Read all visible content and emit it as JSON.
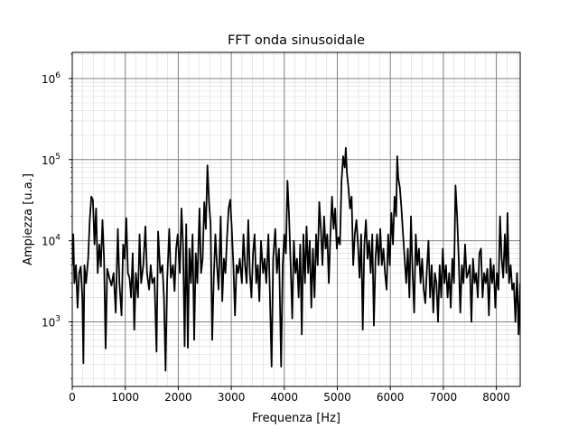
{
  "chart_data": {
    "type": "line",
    "title": "FFT onda sinusoidale",
    "xlabel": "Frequenza [Hz]",
    "ylabel": "Ampiezza [u.a.]",
    "xlim": [
      0,
      8450
    ],
    "ylim": [
      160,
      2100000
    ],
    "yscale": "log",
    "grid": {
      "major": true,
      "minor": true
    },
    "x_ticks": [
      {
        "value": 0,
        "label": "0"
      },
      {
        "value": 1000,
        "label": "1000"
      },
      {
        "value": 2000,
        "label": "2000"
      },
      {
        "value": 3000,
        "label": "3000"
      },
      {
        "value": 4000,
        "label": "4000"
      },
      {
        "value": 5000,
        "label": "5000"
      },
      {
        "value": 6000,
        "label": "6000"
      },
      {
        "value": 7000,
        "label": "7000"
      },
      {
        "value": 8000,
        "label": "8000"
      }
    ],
    "y_ticks": [
      {
        "value": 1000,
        "base": "10",
        "exp": "3"
      },
      {
        "value": 10000,
        "base": "10",
        "exp": "4"
      },
      {
        "value": 100000,
        "base": "10",
        "exp": "5"
      },
      {
        "value": 1000000,
        "base": "10",
        "exp": "6"
      }
    ],
    "series": [
      {
        "color": "#000000",
        "points": [
          [
            0,
            5000
          ],
          [
            20,
            12000
          ],
          [
            40,
            3000
          ],
          [
            70,
            5000
          ],
          [
            100,
            1500
          ],
          [
            130,
            4000
          ],
          [
            160,
            4800
          ],
          [
            190,
            2000
          ],
          [
            210,
            310
          ],
          [
            230,
            5000
          ],
          [
            260,
            3000
          ],
          [
            300,
            6000
          ],
          [
            330,
            18000
          ],
          [
            360,
            35000
          ],
          [
            390,
            32000
          ],
          [
            420,
            9000
          ],
          [
            450,
            25000
          ],
          [
            480,
            4000
          ],
          [
            510,
            9000
          ],
          [
            540,
            4800
          ],
          [
            570,
            18000
          ],
          [
            600,
            6000
          ],
          [
            630,
            470
          ],
          [
            660,
            4500
          ],
          [
            700,
            3500
          ],
          [
            740,
            2800
          ],
          [
            780,
            4000
          ],
          [
            820,
            1300
          ],
          [
            860,
            14000
          ],
          [
            890,
            3000
          ],
          [
            930,
            1200
          ],
          [
            960,
            9000
          ],
          [
            990,
            6000
          ],
          [
            1020,
            19000
          ],
          [
            1050,
            4000
          ],
          [
            1080,
            3500
          ],
          [
            1110,
            2000
          ],
          [
            1140,
            7000
          ],
          [
            1170,
            800
          ],
          [
            1200,
            4000
          ],
          [
            1240,
            2000
          ],
          [
            1270,
            12000
          ],
          [
            1300,
            3000
          ],
          [
            1340,
            5000
          ],
          [
            1380,
            15000
          ],
          [
            1410,
            4000
          ],
          [
            1450,
            2500
          ],
          [
            1480,
            5000
          ],
          [
            1510,
            3000
          ],
          [
            1550,
            3500
          ],
          [
            1590,
            430
          ],
          [
            1620,
            13000
          ],
          [
            1660,
            4000
          ],
          [
            1700,
            5000
          ],
          [
            1730,
            2000
          ],
          [
            1760,
            250
          ],
          [
            1790,
            3200
          ],
          [
            1830,
            14000
          ],
          [
            1860,
            3500
          ],
          [
            1900,
            5000
          ],
          [
            1930,
            2400
          ],
          [
            1960,
            8000
          ],
          [
            1990,
            12000
          ],
          [
            2030,
            4000
          ],
          [
            2060,
            25000
          ],
          [
            2090,
            9000
          ],
          [
            2120,
            500
          ],
          [
            2150,
            16000
          ],
          [
            2180,
            480
          ],
          [
            2210,
            8000
          ],
          [
            2240,
            3000
          ],
          [
            2270,
            12000
          ],
          [
            2300,
            600
          ],
          [
            2330,
            7000
          ],
          [
            2360,
            3000
          ],
          [
            2400,
            25000
          ],
          [
            2430,
            4000
          ],
          [
            2460,
            6000
          ],
          [
            2490,
            30000
          ],
          [
            2520,
            14000
          ],
          [
            2550,
            85000
          ],
          [
            2580,
            30000
          ],
          [
            2610,
            16000
          ],
          [
            2640,
            600
          ],
          [
            2670,
            3500
          ],
          [
            2700,
            12000
          ],
          [
            2730,
            5000
          ],
          [
            2760,
            2500
          ],
          [
            2800,
            20000
          ],
          [
            2830,
            1800
          ],
          [
            2860,
            6000
          ],
          [
            2890,
            4000
          ],
          [
            2920,
            11000
          ],
          [
            2950,
            25000
          ],
          [
            2980,
            32000
          ],
          [
            3010,
            14000
          ],
          [
            3040,
            5000
          ],
          [
            3070,
            1200
          ],
          [
            3100,
            5000
          ],
          [
            3130,
            4000
          ],
          [
            3160,
            6000
          ],
          [
            3200,
            3000
          ],
          [
            3230,
            12000
          ],
          [
            3260,
            5000
          ],
          [
            3290,
            3000
          ],
          [
            3320,
            18000
          ],
          [
            3350,
            4000
          ],
          [
            3380,
            2000
          ],
          [
            3410,
            7000
          ],
          [
            3440,
            12000
          ],
          [
            3470,
            3000
          ],
          [
            3500,
            5000
          ],
          [
            3530,
            1800
          ],
          [
            3560,
            10000
          ],
          [
            3600,
            4000
          ],
          [
            3630,
            6000
          ],
          [
            3660,
            3000
          ],
          [
            3700,
            12000
          ],
          [
            3730,
            2000
          ],
          [
            3760,
            280
          ],
          [
            3790,
            6000
          ],
          [
            3830,
            14000
          ],
          [
            3860,
            4000
          ],
          [
            3900,
            8000
          ],
          [
            3940,
            280
          ],
          [
            3970,
            5000
          ],
          [
            4000,
            12000
          ],
          [
            4030,
            7000
          ],
          [
            4060,
            55000
          ],
          [
            4090,
            20000
          ],
          [
            4120,
            5000
          ],
          [
            4150,
            1100
          ],
          [
            4180,
            10000
          ],
          [
            4210,
            4000
          ],
          [
            4240,
            6000
          ],
          [
            4270,
            2000
          ],
          [
            4300,
            9000
          ],
          [
            4330,
            700
          ],
          [
            4360,
            12000
          ],
          [
            4390,
            3000
          ],
          [
            4420,
            15000
          ],
          [
            4450,
            4000
          ],
          [
            4480,
            10000
          ],
          [
            4510,
            1500
          ],
          [
            4540,
            8000
          ],
          [
            4570,
            2000
          ],
          [
            4600,
            12000
          ],
          [
            4630,
            5000
          ],
          [
            4660,
            30000
          ],
          [
            4690,
            14000
          ],
          [
            4720,
            5000
          ],
          [
            4750,
            20000
          ],
          [
            4780,
            8000
          ],
          [
            4810,
            12000
          ],
          [
            4840,
            3000
          ],
          [
            4870,
            12000
          ],
          [
            4900,
            35000
          ],
          [
            4930,
            14000
          ],
          [
            4960,
            25000
          ],
          [
            4990,
            8000
          ],
          [
            5020,
            11000
          ],
          [
            5050,
            9000
          ],
          [
            5080,
            55000
          ],
          [
            5110,
            110000
          ],
          [
            5140,
            80000
          ],
          [
            5160,
            140000
          ],
          [
            5180,
            70000
          ],
          [
            5210,
            45000
          ],
          [
            5240,
            25000
          ],
          [
            5270,
            35000
          ],
          [
            5300,
            5000
          ],
          [
            5330,
            12000
          ],
          [
            5360,
            18000
          ],
          [
            5390,
            9000
          ],
          [
            5420,
            3500
          ],
          [
            5450,
            12000
          ],
          [
            5480,
            800
          ],
          [
            5510,
            9000
          ],
          [
            5540,
            18000
          ],
          [
            5570,
            6000
          ],
          [
            5600,
            10000
          ],
          [
            5630,
            4000
          ],
          [
            5660,
            12000
          ],
          [
            5690,
            900
          ],
          [
            5720,
            6000
          ],
          [
            5750,
            12000
          ],
          [
            5780,
            5000
          ],
          [
            5810,
            14000
          ],
          [
            5840,
            5000
          ],
          [
            5870,
            8000
          ],
          [
            5900,
            4000
          ],
          [
            5930,
            2500
          ],
          [
            5960,
            12000
          ],
          [
            5990,
            5000
          ],
          [
            6020,
            22000
          ],
          [
            6050,
            9000
          ],
          [
            6080,
            35000
          ],
          [
            6110,
            20000
          ],
          [
            6130,
            110000
          ],
          [
            6150,
            60000
          ],
          [
            6180,
            45000
          ],
          [
            6210,
            25000
          ],
          [
            6240,
            12000
          ],
          [
            6270,
            6000
          ],
          [
            6300,
            3000
          ],
          [
            6330,
            8000
          ],
          [
            6360,
            2000
          ],
          [
            6390,
            20000
          ],
          [
            6420,
            4000
          ],
          [
            6450,
            1300
          ],
          [
            6480,
            12000
          ],
          [
            6510,
            5000
          ],
          [
            6540,
            8000
          ],
          [
            6570,
            3000
          ],
          [
            6600,
            6000
          ],
          [
            6630,
            2500
          ],
          [
            6660,
            1700
          ],
          [
            6690,
            4500
          ],
          [
            6720,
            10000
          ],
          [
            6750,
            2000
          ],
          [
            6780,
            5000
          ],
          [
            6810,
            1300
          ],
          [
            6840,
            4000
          ],
          [
            6870,
            3000
          ],
          [
            6900,
            1000
          ],
          [
            6930,
            5000
          ],
          [
            6960,
            2000
          ],
          [
            6990,
            8000
          ],
          [
            7020,
            3000
          ],
          [
            7050,
            5000
          ],
          [
            7080,
            2000
          ],
          [
            7110,
            4000
          ],
          [
            7140,
            1500
          ],
          [
            7170,
            6000
          ],
          [
            7200,
            3000
          ],
          [
            7230,
            48000
          ],
          [
            7260,
            20000
          ],
          [
            7290,
            6000
          ],
          [
            7320,
            1300
          ],
          [
            7350,
            5000
          ],
          [
            7380,
            3000
          ],
          [
            7410,
            9000
          ],
          [
            7440,
            3500
          ],
          [
            7470,
            4000
          ],
          [
            7500,
            5000
          ],
          [
            7530,
            1000
          ],
          [
            7560,
            6000
          ],
          [
            7590,
            3000
          ],
          [
            7620,
            4000
          ],
          [
            7650,
            2000
          ],
          [
            7680,
            7000
          ],
          [
            7710,
            8000
          ],
          [
            7740,
            2000
          ],
          [
            7770,
            4000
          ],
          [
            7800,
            3000
          ],
          [
            7830,
            4500
          ],
          [
            7860,
            1200
          ],
          [
            7890,
            6000
          ],
          [
            7920,
            3000
          ],
          [
            7950,
            5000
          ],
          [
            7980,
            1500
          ],
          [
            8010,
            4000
          ],
          [
            8040,
            2500
          ],
          [
            8070,
            20000
          ],
          [
            8100,
            6000
          ],
          [
            8130,
            3500
          ],
          [
            8160,
            12000
          ],
          [
            8190,
            4000
          ],
          [
            8210,
            22000
          ],
          [
            8240,
            3000
          ],
          [
            8270,
            5000
          ],
          [
            8300,
            2500
          ],
          [
            8330,
            3000
          ],
          [
            8360,
            1000
          ],
          [
            8390,
            4000
          ],
          [
            8420,
            700
          ],
          [
            8450,
            3000
          ]
        ]
      }
    ]
  }
}
